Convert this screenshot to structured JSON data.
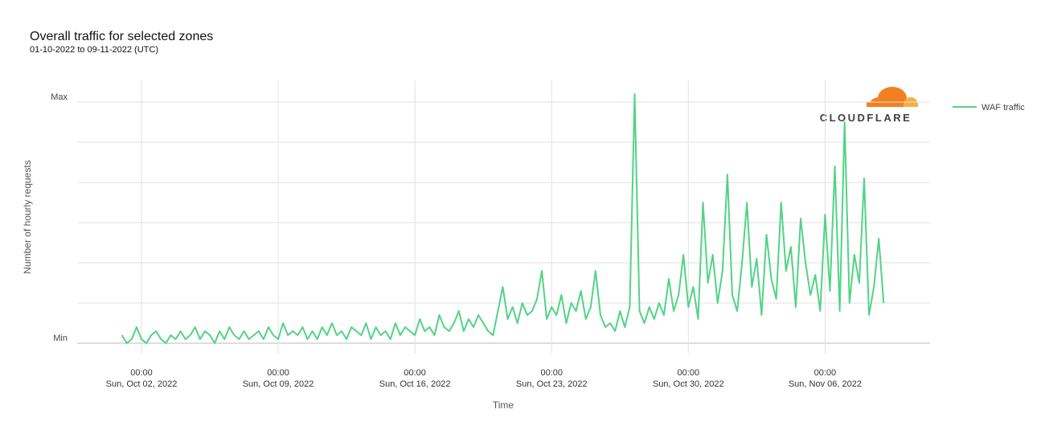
{
  "logo": "CLOUDFLARE",
  "chart_data": {
    "type": "line",
    "title": "Overall traffic for selected zones",
    "subtitle": "01-10-2022 to 09-11-2022 (UTC)",
    "y_label": "Number of hourly requests",
    "x_label": "Time",
    "xlim": [
      "2022-09-28T17:00",
      "2022-11-11T09:00"
    ],
    "xticks": [
      {
        "value": "2022-10-02T00:00",
        "label": [
          "00:00",
          "Sun, Oct 02, 2022"
        ]
      },
      {
        "value": "2022-10-09T00:00",
        "label": [
          "00:00",
          "Sun, Oct 09, 2022"
        ]
      },
      {
        "value": "2022-10-16T00:00",
        "label": [
          "00:00",
          "Sun, Oct 16, 2022"
        ]
      },
      {
        "value": "2022-10-23T00:00",
        "label": [
          "00:00",
          "Sun, Oct 23, 2022"
        ]
      },
      {
        "value": "2022-10-30T00:00",
        "label": [
          "00:00",
          "Sun, Oct 30, 2022"
        ]
      },
      {
        "value": "2022-11-06T00:00",
        "label": [
          "00:00",
          "Sun, Nov 06, 2022"
        ]
      }
    ],
    "ylim": [
      0,
      6
    ],
    "yticks": [
      {
        "value": 0,
        "label": "Min"
      },
      {
        "value": 6,
        "label": "Max"
      }
    ],
    "ygrid": [
      1,
      2,
      3,
      4,
      5
    ],
    "grid": true,
    "legend": "right",
    "x": [
      "2022-10-01T00:00",
      "2022-10-01T06:00",
      "2022-10-01T12:00",
      "2022-10-01T18:00",
      "2022-10-02T00:00",
      "2022-10-02T06:00",
      "2022-10-02T12:00",
      "2022-10-02T18:00",
      "2022-10-03T00:00",
      "2022-10-03T06:00",
      "2022-10-03T12:00",
      "2022-10-03T18:00",
      "2022-10-04T00:00",
      "2022-10-04T06:00",
      "2022-10-04T12:00",
      "2022-10-04T18:00",
      "2022-10-05T00:00",
      "2022-10-05T06:00",
      "2022-10-05T12:00",
      "2022-10-05T18:00",
      "2022-10-06T00:00",
      "2022-10-06T06:00",
      "2022-10-06T12:00",
      "2022-10-06T18:00",
      "2022-10-07T00:00",
      "2022-10-07T06:00",
      "2022-10-07T12:00",
      "2022-10-07T18:00",
      "2022-10-08T00:00",
      "2022-10-08T06:00",
      "2022-10-08T12:00",
      "2022-10-08T18:00",
      "2022-10-09T00:00",
      "2022-10-09T06:00",
      "2022-10-09T12:00",
      "2022-10-09T18:00",
      "2022-10-10T00:00",
      "2022-10-10T06:00",
      "2022-10-10T12:00",
      "2022-10-10T18:00",
      "2022-10-11T00:00",
      "2022-10-11T06:00",
      "2022-10-11T12:00",
      "2022-10-11T18:00",
      "2022-10-12T00:00",
      "2022-10-12T06:00",
      "2022-10-12T12:00",
      "2022-10-12T18:00",
      "2022-10-13T00:00",
      "2022-10-13T06:00",
      "2022-10-13T12:00",
      "2022-10-13T18:00",
      "2022-10-14T00:00",
      "2022-10-14T06:00",
      "2022-10-14T12:00",
      "2022-10-14T18:00",
      "2022-10-15T00:00",
      "2022-10-15T06:00",
      "2022-10-15T12:00",
      "2022-10-15T18:00",
      "2022-10-16T00:00",
      "2022-10-16T06:00",
      "2022-10-16T12:00",
      "2022-10-16T18:00",
      "2022-10-17T00:00",
      "2022-10-17T06:00",
      "2022-10-17T12:00",
      "2022-10-17T18:00",
      "2022-10-18T00:00",
      "2022-10-18T06:00",
      "2022-10-18T12:00",
      "2022-10-18T18:00",
      "2022-10-19T00:00",
      "2022-10-19T06:00",
      "2022-10-19T12:00",
      "2022-10-19T18:00",
      "2022-10-20T00:00",
      "2022-10-20T06:00",
      "2022-10-20T12:00",
      "2022-10-20T18:00",
      "2022-10-21T00:00",
      "2022-10-21T06:00",
      "2022-10-21T12:00",
      "2022-10-21T18:00",
      "2022-10-22T00:00",
      "2022-10-22T06:00",
      "2022-10-22T12:00",
      "2022-10-22T18:00",
      "2022-10-23T00:00",
      "2022-10-23T06:00",
      "2022-10-23T12:00",
      "2022-10-23T18:00",
      "2022-10-24T00:00",
      "2022-10-24T06:00",
      "2022-10-24T12:00",
      "2022-10-24T18:00",
      "2022-10-25T00:00",
      "2022-10-25T06:00",
      "2022-10-25T12:00",
      "2022-10-25T18:00",
      "2022-10-26T00:00",
      "2022-10-26T06:00",
      "2022-10-26T12:00",
      "2022-10-26T18:00",
      "2022-10-27T00:00",
      "2022-10-27T06:00",
      "2022-10-27T12:00",
      "2022-10-27T18:00",
      "2022-10-28T00:00",
      "2022-10-28T06:00",
      "2022-10-28T12:00",
      "2022-10-28T18:00",
      "2022-10-29T00:00",
      "2022-10-29T06:00",
      "2022-10-29T12:00",
      "2022-10-29T18:00",
      "2022-10-30T00:00",
      "2022-10-30T06:00",
      "2022-10-30T12:00",
      "2022-10-30T18:00",
      "2022-10-31T00:00",
      "2022-10-31T06:00",
      "2022-10-31T12:00",
      "2022-10-31T18:00",
      "2022-11-01T00:00",
      "2022-11-01T06:00",
      "2022-11-01T12:00",
      "2022-11-01T18:00",
      "2022-11-02T00:00",
      "2022-11-02T06:00",
      "2022-11-02T12:00",
      "2022-11-02T18:00",
      "2022-11-03T00:00",
      "2022-11-03T06:00",
      "2022-11-03T12:00",
      "2022-11-03T18:00",
      "2022-11-04T00:00",
      "2022-11-04T06:00",
      "2022-11-04T12:00",
      "2022-11-04T18:00",
      "2022-11-05T00:00",
      "2022-11-05T06:00",
      "2022-11-05T12:00",
      "2022-11-05T18:00",
      "2022-11-06T00:00",
      "2022-11-06T06:00",
      "2022-11-06T12:00",
      "2022-11-06T18:00",
      "2022-11-07T00:00",
      "2022-11-07T06:00",
      "2022-11-07T12:00",
      "2022-11-07T18:00",
      "2022-11-08T00:00",
      "2022-11-08T06:00",
      "2022-11-08T12:00",
      "2022-11-08T18:00",
      "2022-11-09T00:00"
    ],
    "series": [
      {
        "name": "WAF traffic",
        "color": "#52d385",
        "values": [
          0.2,
          0,
          0.1,
          0.4,
          0.1,
          0,
          0.2,
          0.3,
          0.1,
          0,
          0.2,
          0.1,
          0.3,
          0.1,
          0.2,
          0.4,
          0.1,
          0.3,
          0.2,
          0,
          0.3,
          0.1,
          0.4,
          0.2,
          0.1,
          0.3,
          0.1,
          0.2,
          0.3,
          0.1,
          0.4,
          0.2,
          0.1,
          0.5,
          0.2,
          0.3,
          0.2,
          0.4,
          0.1,
          0.3,
          0.1,
          0.4,
          0.2,
          0.5,
          0.2,
          0.3,
          0.1,
          0.4,
          0.3,
          0.2,
          0.5,
          0.1,
          0.4,
          0.2,
          0.3,
          0.1,
          0.5,
          0.2,
          0.4,
          0.3,
          0.2,
          0.6,
          0.3,
          0.4,
          0.2,
          0.7,
          0.4,
          0.3,
          0.5,
          0.8,
          0.3,
          0.6,
          0.4,
          0.7,
          0.5,
          0.3,
          0.2,
          0.8,
          1.4,
          0.6,
          0.9,
          0.5,
          1.0,
          0.7,
          0.8,
          1.1,
          1.8,
          0.6,
          0.9,
          0.7,
          1.2,
          0.5,
          1.0,
          0.8,
          1.3,
          0.6,
          0.9,
          1.8,
          0.7,
          0.4,
          0.5,
          0.3,
          0.8,
          0.4,
          0.9,
          6.2,
          0.8,
          0.5,
          0.9,
          0.6,
          1.0,
          0.7,
          1.6,
          0.8,
          1.2,
          2.2,
          0.9,
          1.4,
          0.6,
          3.5,
          1.5,
          2.2,
          1.0,
          1.8,
          4.2,
          1.2,
          0.8,
          2.0,
          3.5,
          1.4,
          2.1,
          0.7,
          2.7,
          1.6,
          1.1,
          3.5,
          1.8,
          2.4,
          0.9,
          3.1,
          2.0,
          1.2,
          1.7,
          0.8,
          3.2,
          1.3,
          4.4,
          0.8,
          5.5,
          1.0,
          2.2,
          1.5,
          4.1,
          0.7,
          1.4,
          2.6,
          1.0
        ]
      }
    ]
  }
}
